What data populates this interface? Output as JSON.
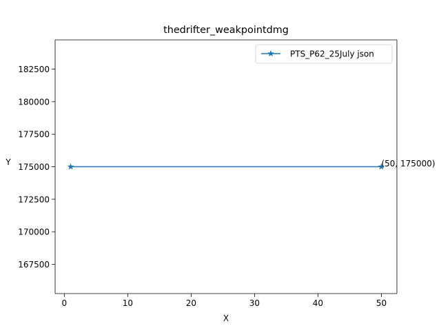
{
  "chart_data": {
    "type": "line",
    "title": "thedrifter_weakpointdmg",
    "xlabel": "X",
    "ylabel": "Y",
    "xlim": [
      -1.45,
      52.45
    ],
    "ylim": [
      165250,
      184750
    ],
    "x_ticks": [
      0,
      10,
      20,
      30,
      40,
      50
    ],
    "x_tick_labels": [
      "0",
      "10",
      "20",
      "30",
      "40",
      "50"
    ],
    "y_ticks": [
      167500,
      170000,
      172500,
      175000,
      177500,
      180000,
      182500
    ],
    "y_tick_labels": [
      "167500",
      "170000",
      "172500",
      "175000",
      "177500",
      "180000",
      "182500"
    ],
    "grid": false,
    "legend_position": "upper right",
    "series": [
      {
        "name": "PTS_P62_25July json",
        "color": "#1f77b4",
        "marker": "star",
        "x": [
          1,
          50
        ],
        "y": [
          175000,
          175000
        ]
      }
    ],
    "annotations": [
      {
        "text": "(50, 175000)",
        "x": 50,
        "y": 175000
      }
    ]
  }
}
